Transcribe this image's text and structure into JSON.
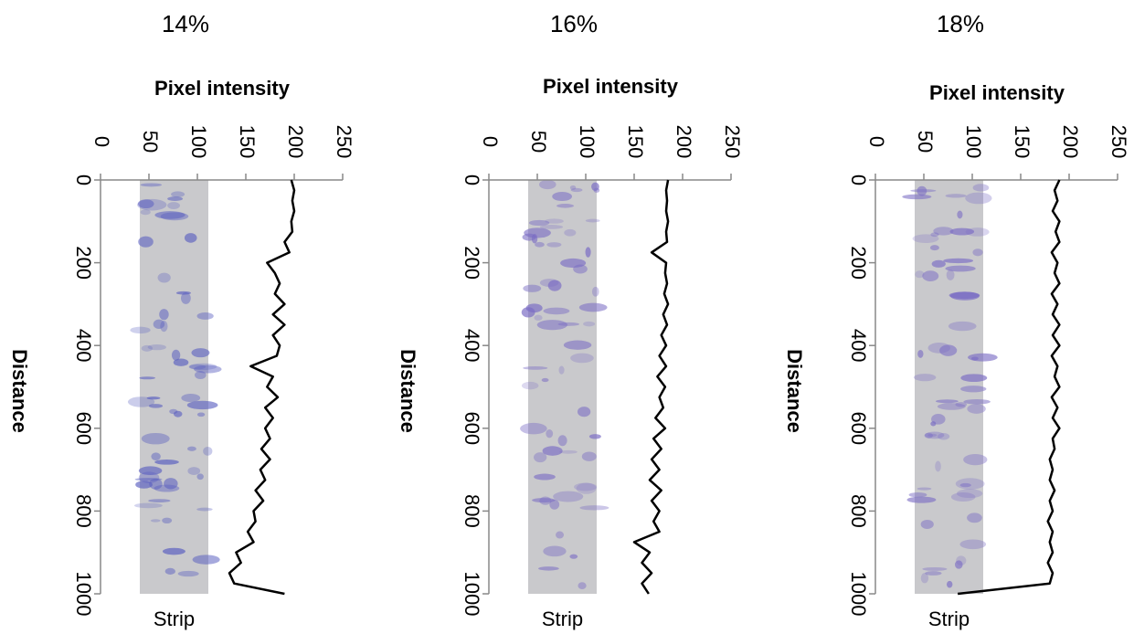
{
  "chart_data": [
    {
      "type": "line",
      "title": "14%",
      "ylabel": "Pixel intensity",
      "xlabel": "Distance",
      "strip_label": "Strip",
      "color": "#000000",
      "x": [
        0,
        25,
        50,
        75,
        100,
        125,
        150,
        175,
        200,
        225,
        250,
        275,
        300,
        325,
        350,
        375,
        400,
        425,
        450,
        475,
        500,
        525,
        550,
        575,
        600,
        625,
        650,
        675,
        700,
        725,
        750,
        775,
        800,
        825,
        850,
        875,
        900,
        925,
        950,
        975,
        1000
      ],
      "values": [
        197,
        200,
        198,
        200,
        197,
        198,
        190,
        195,
        172,
        180,
        185,
        180,
        190,
        178,
        190,
        178,
        185,
        182,
        155,
        178,
        172,
        183,
        170,
        178,
        170,
        175,
        166,
        175,
        165,
        170,
        160,
        168,
        158,
        160,
        152,
        158,
        140,
        145,
        133,
        138,
        190
      ],
      "xlim": [
        0,
        1000
      ],
      "xticks": [
        0,
        200,
        400,
        600,
        800,
        1000
      ],
      "ylim": [
        0,
        250
      ],
      "yticks": [
        0,
        50,
        100,
        150,
        200,
        250
      ]
    },
    {
      "type": "line",
      "title": "16%",
      "ylabel": "Pixel intensity",
      "xlabel": "Distance",
      "strip_label": "Strip",
      "color": "#000000",
      "x": [
        0,
        25,
        50,
        75,
        100,
        125,
        150,
        175,
        200,
        225,
        250,
        275,
        300,
        325,
        350,
        375,
        400,
        425,
        450,
        475,
        500,
        525,
        550,
        575,
        600,
        625,
        650,
        675,
        700,
        725,
        750,
        775,
        800,
        825,
        850,
        875,
        900,
        925,
        950,
        975,
        1000
      ],
      "values": [
        185,
        183,
        184,
        183,
        185,
        183,
        184,
        168,
        183,
        182,
        184,
        181,
        185,
        180,
        184,
        178,
        183,
        176,
        183,
        174,
        182,
        176,
        180,
        172,
        182,
        170,
        178,
        168,
        176,
        166,
        178,
        168,
        176,
        170,
        176,
        150,
        166,
        158,
        168,
        158,
        165
      ],
      "xlim": [
        0,
        1000
      ],
      "xticks": [
        0,
        200,
        400,
        600,
        800,
        1000
      ],
      "ylim": [
        0,
        250
      ],
      "yticks": [
        0,
        50,
        100,
        150,
        200,
        250
      ]
    },
    {
      "type": "line",
      "title": "18%",
      "ylabel": "Pixel intensity",
      "xlabel": "Distance",
      "strip_label": "Strip",
      "color": "#000000",
      "x": [
        0,
        25,
        50,
        75,
        100,
        125,
        150,
        175,
        200,
        225,
        250,
        275,
        300,
        325,
        350,
        375,
        400,
        425,
        450,
        475,
        500,
        525,
        550,
        575,
        600,
        625,
        650,
        675,
        700,
        725,
        750,
        775,
        800,
        825,
        850,
        875,
        900,
        925,
        950,
        975,
        1000
      ],
      "values": [
        190,
        185,
        188,
        183,
        190,
        186,
        190,
        182,
        188,
        185,
        190,
        182,
        188,
        183,
        190,
        183,
        190,
        182,
        188,
        185,
        190,
        182,
        188,
        183,
        190,
        183,
        185,
        180,
        183,
        180,
        185,
        180,
        183,
        178,
        183,
        180,
        183,
        178,
        183,
        180,
        85
      ],
      "xlim": [
        0,
        1000
      ],
      "xticks": [
        0,
        200,
        400,
        600,
        800,
        1000
      ],
      "ylim": [
        0,
        250
      ],
      "yticks": [
        0,
        50,
        100,
        150,
        200,
        250
      ]
    }
  ]
}
